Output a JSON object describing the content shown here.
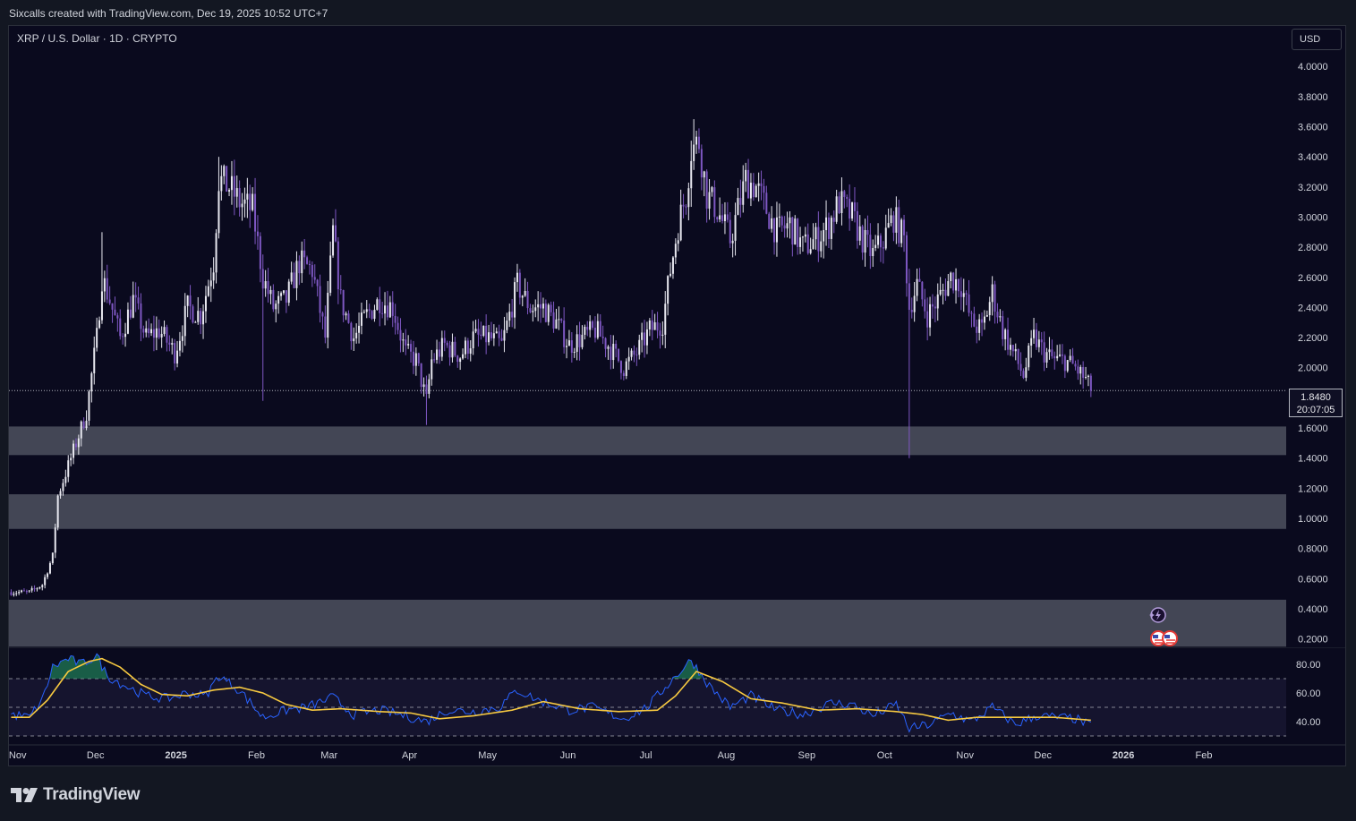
{
  "credit": "Sixcalls created with TradingView.com, Dec 19, 2025 10:52 UTC+7",
  "logo": {
    "text": "TradingView",
    "icon": "tradingview-logo-icon"
  },
  "colors": {
    "background": "#131722",
    "pane": "#0a0a1e",
    "candle_up": "#e8e8f0",
    "candle_down": "#7e57c2",
    "zone": "#474a58",
    "rsi": "#2962ff",
    "rsi_ma": "#f7c940",
    "axis_text": "#d1d4dc"
  },
  "chart_data": {
    "type": "candlestick",
    "title": "XRP / U.S. Dollar · 1D · CRYPTO",
    "currency_button": "USD",
    "last_price": {
      "value": "1.8480",
      "countdown": "20:07:05"
    },
    "y_axis": {
      "ticks": [
        "4.0000",
        "3.8000",
        "3.6000",
        "3.4000",
        "3.2000",
        "3.0000",
        "2.8000",
        "2.6000",
        "2.4000",
        "2.2000",
        "2.0000",
        "1.6000",
        "1.4000",
        "1.2000",
        "1.0000",
        "0.8000",
        "0.6000",
        "0.4000",
        "0.2000"
      ],
      "range": [
        0.15,
        4.15
      ]
    },
    "x_axis": {
      "labels": [
        "Nov",
        "Dec",
        "2025",
        "Feb",
        "Mar",
        "Apr",
        "May",
        "Jun",
        "Jul",
        "Aug",
        "Sep",
        "Oct",
        "Nov",
        "Dec",
        "2026",
        "Feb"
      ],
      "dates": [
        "2024-11-01",
        "2024-12-01",
        "2025-01-01",
        "2025-02-01",
        "2025-03-01",
        "2025-04-01",
        "2025-05-01",
        "2025-06-01",
        "2025-07-01",
        "2025-08-01",
        "2025-09-01",
        "2025-10-01",
        "2025-11-01",
        "2025-12-01",
        "2026-01-01",
        "2026-02-01"
      ]
    },
    "start_date": "2024-10-29",
    "end_date": "2025-12-19",
    "support_zones": [
      {
        "low": 1.42,
        "high": 1.61
      },
      {
        "low": 0.93,
        "high": 1.16
      },
      {
        "low": 0.15,
        "high": 0.46
      }
    ],
    "price_path": [
      [
        "2024-10-29",
        0.51
      ],
      [
        "2024-11-05",
        0.51
      ],
      [
        "2024-11-10",
        0.56
      ],
      [
        "2024-11-14",
        0.75
      ],
      [
        "2024-11-16",
        1.15
      ],
      [
        "2024-11-21",
        1.4
      ],
      [
        "2024-11-23",
        1.5
      ],
      [
        "2024-11-27",
        1.7
      ],
      [
        "2024-12-01",
        2.2
      ],
      [
        "2024-12-03",
        2.6
      ],
      [
        "2024-12-06",
        2.45
      ],
      [
        "2024-12-10",
        2.2
      ],
      [
        "2024-12-15",
        2.45
      ],
      [
        "2024-12-20",
        2.2
      ],
      [
        "2024-12-25",
        2.25
      ],
      [
        "2024-12-31",
        2.1
      ],
      [
        "2025-01-05",
        2.4
      ],
      [
        "2025-01-10",
        2.35
      ],
      [
        "2025-01-15",
        2.7
      ],
      [
        "2025-01-17",
        3.25
      ],
      [
        "2025-01-21",
        3.2
      ],
      [
        "2025-01-25",
        3.1
      ],
      [
        "2025-01-30",
        3.05
      ],
      [
        "2025-02-03",
        2.6
      ],
      [
        "2025-02-07",
        2.4
      ],
      [
        "2025-02-12",
        2.45
      ],
      [
        "2025-02-17",
        2.7
      ],
      [
        "2025-02-22",
        2.65
      ],
      [
        "2025-02-27",
        2.2
      ],
      [
        "2025-03-02",
        2.9
      ],
      [
        "2025-03-05",
        2.45
      ],
      [
        "2025-03-10",
        2.2
      ],
      [
        "2025-03-15",
        2.35
      ],
      [
        "2025-03-20",
        2.45
      ],
      [
        "2025-03-25",
        2.4
      ],
      [
        "2025-03-30",
        2.1
      ],
      [
        "2025-04-03",
        2.05
      ],
      [
        "2025-04-07",
        1.78
      ],
      [
        "2025-04-09",
        2.05
      ],
      [
        "2025-04-14",
        2.15
      ],
      [
        "2025-04-20",
        2.08
      ],
      [
        "2025-04-25",
        2.2
      ],
      [
        "2025-05-01",
        2.2
      ],
      [
        "2025-05-06",
        2.15
      ],
      [
        "2025-05-12",
        2.55
      ],
      [
        "2025-05-17",
        2.4
      ],
      [
        "2025-05-22",
        2.4
      ],
      [
        "2025-05-27",
        2.3
      ],
      [
        "2025-06-01",
        2.15
      ],
      [
        "2025-06-06",
        2.2
      ],
      [
        "2025-06-11",
        2.25
      ],
      [
        "2025-06-16",
        2.15
      ],
      [
        "2025-06-22",
        2.0
      ],
      [
        "2025-06-27",
        2.1
      ],
      [
        "2025-07-02",
        2.25
      ],
      [
        "2025-07-07",
        2.3
      ],
      [
        "2025-07-10",
        2.65
      ],
      [
        "2025-07-13",
        2.95
      ],
      [
        "2025-07-16",
        3.15
      ],
      [
        "2025-07-18",
        3.45
      ],
      [
        "2025-07-21",
        3.5
      ],
      [
        "2025-07-24",
        3.15
      ],
      [
        "2025-07-28",
        3.05
      ],
      [
        "2025-08-02",
        2.85
      ],
      [
        "2025-08-08",
        3.25
      ],
      [
        "2025-08-12",
        3.2
      ],
      [
        "2025-08-16",
        3.05
      ],
      [
        "2025-08-20",
        2.9
      ],
      [
        "2025-08-25",
        2.95
      ],
      [
        "2025-08-30",
        2.8
      ],
      [
        "2025-09-04",
        2.85
      ],
      [
        "2025-09-09",
        2.95
      ],
      [
        "2025-09-13",
        3.1
      ],
      [
        "2025-09-18",
        3.0
      ],
      [
        "2025-09-22",
        2.85
      ],
      [
        "2025-09-26",
        2.75
      ],
      [
        "2025-09-30",
        2.85
      ],
      [
        "2025-10-04",
        3.0
      ],
      [
        "2025-10-08",
        2.85
      ],
      [
        "2025-10-10",
        2.4
      ],
      [
        "2025-10-13",
        2.55
      ],
      [
        "2025-10-17",
        2.35
      ],
      [
        "2025-10-21",
        2.45
      ],
      [
        "2025-10-26",
        2.6
      ],
      [
        "2025-10-30",
        2.55
      ],
      [
        "2025-11-03",
        2.3
      ],
      [
        "2025-11-07",
        2.25
      ],
      [
        "2025-11-11",
        2.5
      ],
      [
        "2025-11-15",
        2.25
      ],
      [
        "2025-11-19",
        2.1
      ],
      [
        "2025-11-23",
        1.95
      ],
      [
        "2025-11-27",
        2.2
      ],
      [
        "2025-12-01",
        2.1
      ],
      [
        "2025-12-05",
        2.05
      ],
      [
        "2025-12-09",
        2.05
      ],
      [
        "2025-12-13",
        2.0
      ],
      [
        "2025-12-17",
        1.92
      ],
      [
        "2025-12-19",
        1.848
      ]
    ],
    "wick_spikes": [
      {
        "date": "2025-10-10",
        "low": 1.4
      },
      {
        "date": "2025-04-07",
        "low": 1.62
      },
      {
        "date": "2025-02-03",
        "low": 1.78
      },
      {
        "date": "2025-03-02",
        "high": 2.99
      },
      {
        "date": "2025-07-19",
        "high": 3.65
      },
      {
        "date": "2024-12-03",
        "high": 2.9
      },
      {
        "date": "2025-01-17",
        "high": 3.4
      }
    ],
    "rsi": {
      "ticks": [
        "80.00",
        "60.00",
        "40.00"
      ],
      "range": [
        25,
        90
      ],
      "bands": [
        70,
        50,
        30
      ],
      "rsi_path": [
        [
          "2024-10-29",
          45
        ],
        [
          "2024-11-05",
          43
        ],
        [
          "2024-11-10",
          55
        ],
        [
          "2024-11-14",
          78
        ],
        [
          "2024-11-20",
          84
        ],
        [
          "2024-11-25",
          80
        ],
        [
          "2024-12-01",
          86
        ],
        [
          "2024-12-05",
          72
        ],
        [
          "2024-12-12",
          65
        ],
        [
          "2024-12-20",
          58
        ],
        [
          "2024-12-28",
          56
        ],
        [
          "2025-01-05",
          60
        ],
        [
          "2025-01-12",
          58
        ],
        [
          "2025-01-17",
          72
        ],
        [
          "2025-01-25",
          62
        ],
        [
          "2025-02-03",
          43
        ],
        [
          "2025-02-12",
          48
        ],
        [
          "2025-02-20",
          50
        ],
        [
          "2025-03-02",
          57
        ],
        [
          "2025-03-10",
          45
        ],
        [
          "2025-03-20",
          48
        ],
        [
          "2025-03-30",
          44
        ],
        [
          "2025-04-07",
          40
        ],
        [
          "2025-04-15",
          48
        ],
        [
          "2025-04-25",
          47
        ],
        [
          "2025-05-05",
          50
        ],
        [
          "2025-05-12",
          62
        ],
        [
          "2025-05-20",
          55
        ],
        [
          "2025-06-01",
          48
        ],
        [
          "2025-06-10",
          50
        ],
        [
          "2025-06-22",
          42
        ],
        [
          "2025-07-01",
          50
        ],
        [
          "2025-07-10",
          68
        ],
        [
          "2025-07-18",
          83
        ],
        [
          "2025-07-25",
          65
        ],
        [
          "2025-08-02",
          50
        ],
        [
          "2025-08-10",
          58
        ],
        [
          "2025-08-20",
          48
        ],
        [
          "2025-08-30",
          45
        ],
        [
          "2025-09-10",
          53
        ],
        [
          "2025-09-18",
          52
        ],
        [
          "2025-09-26",
          44
        ],
        [
          "2025-10-05",
          52
        ],
        [
          "2025-10-10",
          35
        ],
        [
          "2025-10-18",
          38
        ],
        [
          "2025-10-26",
          46
        ],
        [
          "2025-11-03",
          40
        ],
        [
          "2025-11-11",
          50
        ],
        [
          "2025-11-20",
          38
        ],
        [
          "2025-11-28",
          44
        ],
        [
          "2025-12-06",
          43
        ],
        [
          "2025-12-13",
          42
        ],
        [
          "2025-12-19",
          37
        ]
      ],
      "ma_path": [
        [
          "2024-10-29",
          43
        ],
        [
          "2024-11-05",
          43
        ],
        [
          "2024-11-12",
          55
        ],
        [
          "2024-11-20",
          75
        ],
        [
          "2024-11-28",
          82
        ],
        [
          "2024-12-03",
          84
        ],
        [
          "2024-12-10",
          78
        ],
        [
          "2024-12-18",
          66
        ],
        [
          "2024-12-26",
          59
        ],
        [
          "2025-01-05",
          58
        ],
        [
          "2025-01-15",
          62
        ],
        [
          "2025-01-25",
          64
        ],
        [
          "2025-02-03",
          60
        ],
        [
          "2025-02-12",
          52
        ],
        [
          "2025-02-22",
          48
        ],
        [
          "2025-03-05",
          49
        ],
        [
          "2025-03-20",
          47
        ],
        [
          "2025-04-01",
          46
        ],
        [
          "2025-04-12",
          42
        ],
        [
          "2025-04-25",
          44
        ],
        [
          "2025-05-10",
          48
        ],
        [
          "2025-05-22",
          54
        ],
        [
          "2025-06-05",
          49
        ],
        [
          "2025-06-20",
          47
        ],
        [
          "2025-07-05",
          48
        ],
        [
          "2025-07-12",
          58
        ],
        [
          "2025-07-20",
          75
        ],
        [
          "2025-07-30",
          68
        ],
        [
          "2025-08-10",
          56
        ],
        [
          "2025-08-22",
          53
        ],
        [
          "2025-09-05",
          48
        ],
        [
          "2025-09-20",
          49
        ],
        [
          "2025-10-05",
          47
        ],
        [
          "2025-10-15",
          45
        ],
        [
          "2025-10-25",
          41
        ],
        [
          "2025-11-05",
          43
        ],
        [
          "2025-11-20",
          43
        ],
        [
          "2025-12-05",
          43
        ],
        [
          "2025-12-19",
          41
        ]
      ]
    }
  }
}
